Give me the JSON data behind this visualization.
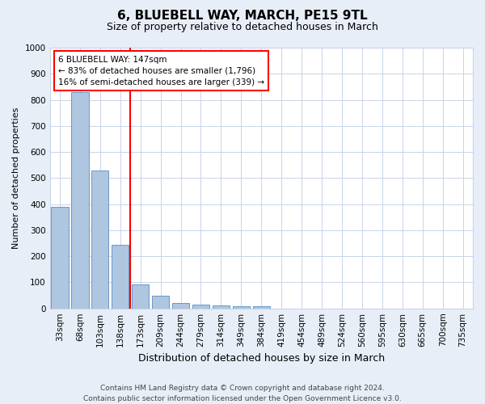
{
  "title": "6, BLUEBELL WAY, MARCH, PE15 9TL",
  "subtitle": "Size of property relative to detached houses in March",
  "xlabel": "Distribution of detached houses by size in March",
  "ylabel": "Number of detached properties",
  "categories": [
    "33sqm",
    "68sqm",
    "103sqm",
    "138sqm",
    "173sqm",
    "209sqm",
    "244sqm",
    "279sqm",
    "314sqm",
    "349sqm",
    "384sqm",
    "419sqm",
    "454sqm",
    "489sqm",
    "524sqm",
    "560sqm",
    "595sqm",
    "630sqm",
    "665sqm",
    "700sqm",
    "735sqm"
  ],
  "values": [
    390,
    830,
    530,
    245,
    93,
    50,
    20,
    15,
    10,
    8,
    8,
    0,
    0,
    0,
    0,
    0,
    0,
    0,
    0,
    0,
    0
  ],
  "bar_color": "#aec6df",
  "bar_edge_color": "#6699cc",
  "red_line_x": 3.5,
  "ylim": [
    0,
    1000
  ],
  "yticks": [
    0,
    100,
    200,
    300,
    400,
    500,
    600,
    700,
    800,
    900,
    1000
  ],
  "annotation_title": "6 BLUEBELL WAY: 147sqm",
  "annotation_line1": "← 83% of detached houses are smaller (1,796)",
  "annotation_line2": "16% of semi-detached houses are larger (339) →",
  "footer_line1": "Contains HM Land Registry data © Crown copyright and database right 2024.",
  "footer_line2": "Contains public sector information licensed under the Open Government Licence v3.0.",
  "bg_color": "#e8eef8",
  "plot_bg_color": "#ffffff",
  "grid_color": "#c8d4e8",
  "title_fontsize": 11,
  "subtitle_fontsize": 9,
  "xlabel_fontsize": 9,
  "ylabel_fontsize": 8,
  "tick_fontsize": 7.5,
  "footer_fontsize": 6.5,
  "annot_fontsize": 7.5
}
